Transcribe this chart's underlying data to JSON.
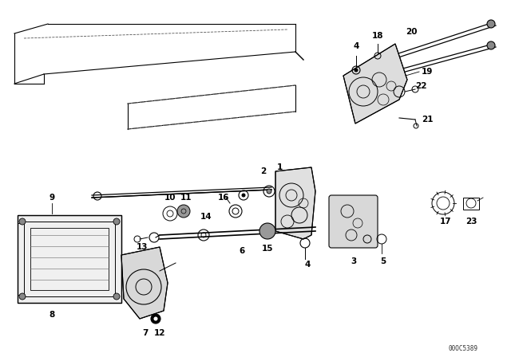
{
  "background_color": "#ffffff",
  "diagram_color": "#000000",
  "figure_width": 6.4,
  "figure_height": 4.48,
  "dpi": 100,
  "watermark": "00OC5389"
}
